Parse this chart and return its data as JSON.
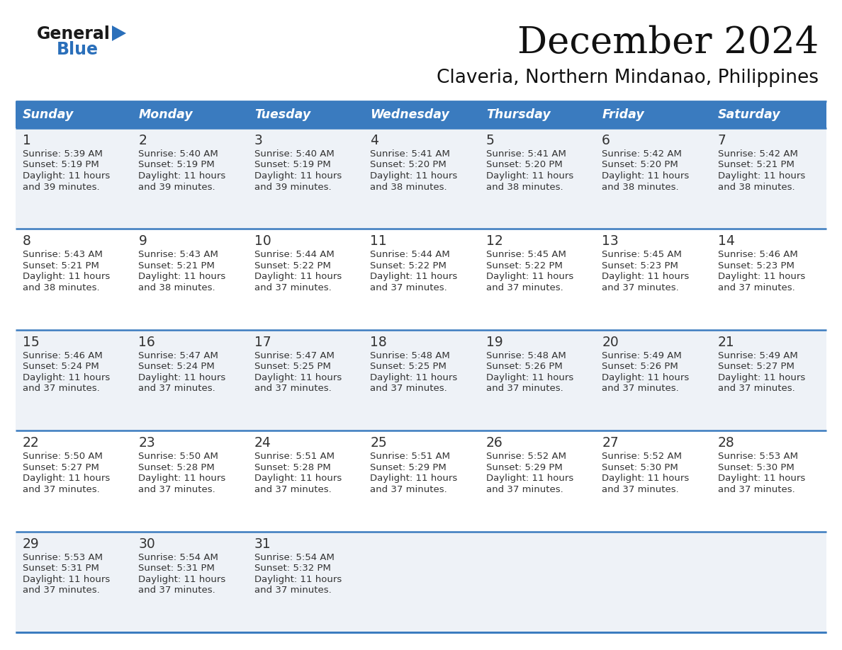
{
  "title": "December 2024",
  "subtitle": "Claveria, Northern Mindanao, Philippines",
  "header_bg_color": "#3a7bbf",
  "header_text_color": "#ffffff",
  "cell_bg_light": "#eef2f7",
  "cell_bg_white": "#ffffff",
  "row_line_color": "#3a7bbf",
  "text_color": "#333333",
  "days_of_week": [
    "Sunday",
    "Monday",
    "Tuesday",
    "Wednesday",
    "Thursday",
    "Friday",
    "Saturday"
  ],
  "calendar_data": [
    [
      {
        "day": 1,
        "sunrise": "5:39 AM",
        "sunset": "5:19 PM",
        "daylight_hours": 11,
        "daylight_minutes": 39
      },
      {
        "day": 2,
        "sunrise": "5:40 AM",
        "sunset": "5:19 PM",
        "daylight_hours": 11,
        "daylight_minutes": 39
      },
      {
        "day": 3,
        "sunrise": "5:40 AM",
        "sunset": "5:19 PM",
        "daylight_hours": 11,
        "daylight_minutes": 39
      },
      {
        "day": 4,
        "sunrise": "5:41 AM",
        "sunset": "5:20 PM",
        "daylight_hours": 11,
        "daylight_minutes": 38
      },
      {
        "day": 5,
        "sunrise": "5:41 AM",
        "sunset": "5:20 PM",
        "daylight_hours": 11,
        "daylight_minutes": 38
      },
      {
        "day": 6,
        "sunrise": "5:42 AM",
        "sunset": "5:20 PM",
        "daylight_hours": 11,
        "daylight_minutes": 38
      },
      {
        "day": 7,
        "sunrise": "5:42 AM",
        "sunset": "5:21 PM",
        "daylight_hours": 11,
        "daylight_minutes": 38
      }
    ],
    [
      {
        "day": 8,
        "sunrise": "5:43 AM",
        "sunset": "5:21 PM",
        "daylight_hours": 11,
        "daylight_minutes": 38
      },
      {
        "day": 9,
        "sunrise": "5:43 AM",
        "sunset": "5:21 PM",
        "daylight_hours": 11,
        "daylight_minutes": 38
      },
      {
        "day": 10,
        "sunrise": "5:44 AM",
        "sunset": "5:22 PM",
        "daylight_hours": 11,
        "daylight_minutes": 37
      },
      {
        "day": 11,
        "sunrise": "5:44 AM",
        "sunset": "5:22 PM",
        "daylight_hours": 11,
        "daylight_minutes": 37
      },
      {
        "day": 12,
        "sunrise": "5:45 AM",
        "sunset": "5:22 PM",
        "daylight_hours": 11,
        "daylight_minutes": 37
      },
      {
        "day": 13,
        "sunrise": "5:45 AM",
        "sunset": "5:23 PM",
        "daylight_hours": 11,
        "daylight_minutes": 37
      },
      {
        "day": 14,
        "sunrise": "5:46 AM",
        "sunset": "5:23 PM",
        "daylight_hours": 11,
        "daylight_minutes": 37
      }
    ],
    [
      {
        "day": 15,
        "sunrise": "5:46 AM",
        "sunset": "5:24 PM",
        "daylight_hours": 11,
        "daylight_minutes": 37
      },
      {
        "day": 16,
        "sunrise": "5:47 AM",
        "sunset": "5:24 PM",
        "daylight_hours": 11,
        "daylight_minutes": 37
      },
      {
        "day": 17,
        "sunrise": "5:47 AM",
        "sunset": "5:25 PM",
        "daylight_hours": 11,
        "daylight_minutes": 37
      },
      {
        "day": 18,
        "sunrise": "5:48 AM",
        "sunset": "5:25 PM",
        "daylight_hours": 11,
        "daylight_minutes": 37
      },
      {
        "day": 19,
        "sunrise": "5:48 AM",
        "sunset": "5:26 PM",
        "daylight_hours": 11,
        "daylight_minutes": 37
      },
      {
        "day": 20,
        "sunrise": "5:49 AM",
        "sunset": "5:26 PM",
        "daylight_hours": 11,
        "daylight_minutes": 37
      },
      {
        "day": 21,
        "sunrise": "5:49 AM",
        "sunset": "5:27 PM",
        "daylight_hours": 11,
        "daylight_minutes": 37
      }
    ],
    [
      {
        "day": 22,
        "sunrise": "5:50 AM",
        "sunset": "5:27 PM",
        "daylight_hours": 11,
        "daylight_minutes": 37
      },
      {
        "day": 23,
        "sunrise": "5:50 AM",
        "sunset": "5:28 PM",
        "daylight_hours": 11,
        "daylight_minutes": 37
      },
      {
        "day": 24,
        "sunrise": "5:51 AM",
        "sunset": "5:28 PM",
        "daylight_hours": 11,
        "daylight_minutes": 37
      },
      {
        "day": 25,
        "sunrise": "5:51 AM",
        "sunset": "5:29 PM",
        "daylight_hours": 11,
        "daylight_minutes": 37
      },
      {
        "day": 26,
        "sunrise": "5:52 AM",
        "sunset": "5:29 PM",
        "daylight_hours": 11,
        "daylight_minutes": 37
      },
      {
        "day": 27,
        "sunrise": "5:52 AM",
        "sunset": "5:30 PM",
        "daylight_hours": 11,
        "daylight_minutes": 37
      },
      {
        "day": 28,
        "sunrise": "5:53 AM",
        "sunset": "5:30 PM",
        "daylight_hours": 11,
        "daylight_minutes": 37
      }
    ],
    [
      {
        "day": 29,
        "sunrise": "5:53 AM",
        "sunset": "5:31 PM",
        "daylight_hours": 11,
        "daylight_minutes": 37
      },
      {
        "day": 30,
        "sunrise": "5:54 AM",
        "sunset": "5:31 PM",
        "daylight_hours": 11,
        "daylight_minutes": 37
      },
      {
        "day": 31,
        "sunrise": "5:54 AM",
        "sunset": "5:32 PM",
        "daylight_hours": 11,
        "daylight_minutes": 37
      },
      null,
      null,
      null,
      null
    ]
  ],
  "logo_text_general": "General",
  "logo_text_blue": "Blue",
  "logo_color_general": "#1a1a1a",
  "logo_color_blue": "#2a6fba",
  "logo_triangle_color": "#2a6fba"
}
